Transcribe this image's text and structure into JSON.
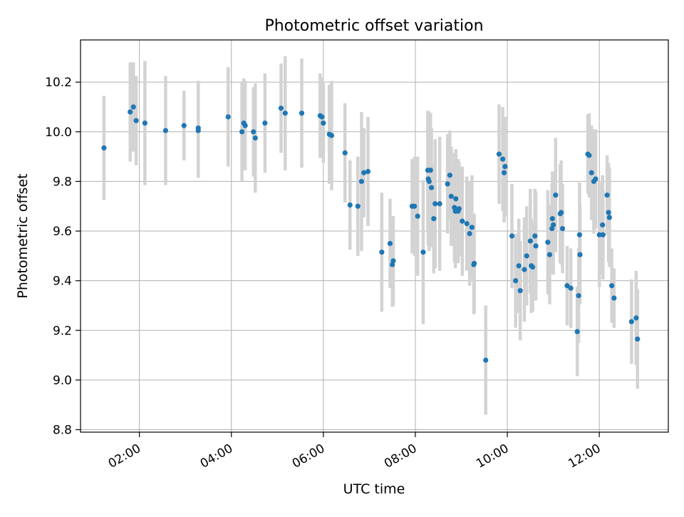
{
  "chart_data": {
    "type": "scatter",
    "title": "Photometric offset variation",
    "xlabel": "UTC time",
    "ylabel": "Photometric offset",
    "x_unit": "hours",
    "xlim": [
      0.72,
      13.5
    ],
    "ylim": [
      8.79,
      10.37
    ],
    "x_ticks": [
      {
        "value": 2,
        "label": "02:00"
      },
      {
        "value": 4,
        "label": "04:00"
      },
      {
        "value": 6,
        "label": "06:00"
      },
      {
        "value": 8,
        "label": "08:00"
      },
      {
        "value": 10,
        "label": "10:00"
      },
      {
        "value": 12,
        "label": "12:00"
      }
    ],
    "y_ticks": [
      {
        "value": 8.8,
        "label": "8.8"
      },
      {
        "value": 9.0,
        "label": "9.0"
      },
      {
        "value": 9.2,
        "label": "9.2"
      },
      {
        "value": 9.4,
        "label": "9.4"
      },
      {
        "value": 9.6,
        "label": "9.6"
      },
      {
        "value": 9.8,
        "label": "9.8"
      },
      {
        "value": 10.0,
        "label": "10.0"
      },
      {
        "value": 10.2,
        "label": "10.2"
      }
    ],
    "grid": true,
    "colors": {
      "point": "#1f77b4",
      "errorbar": "#d3d3d3",
      "grid": "#b0b0b0",
      "axes": "#000000"
    },
    "series": [
      {
        "points": [
          [
            1.23,
            9.935,
            0.21
          ],
          [
            1.8,
            10.08,
            0.2
          ],
          [
            1.87,
            10.1,
            0.18
          ],
          [
            1.93,
            10.045,
            0.18
          ],
          [
            2.12,
            10.035,
            0.25
          ],
          [
            2.57,
            10.005,
            0.22
          ],
          [
            2.97,
            10.025,
            0.14
          ],
          [
            3.28,
            10.005,
            0.19
          ],
          [
            3.28,
            10.015,
            0.19
          ],
          [
            3.93,
            10.06,
            0.2
          ],
          [
            4.23,
            10.0,
            0.2
          ],
          [
            4.27,
            10.035,
            0.18
          ],
          [
            4.3,
            10.025,
            0.18
          ],
          [
            4.48,
            10.0,
            0.18
          ],
          [
            4.52,
            9.975,
            0.22
          ],
          [
            4.73,
            10.035,
            0.2
          ],
          [
            5.08,
            10.095,
            0.18
          ],
          [
            5.17,
            10.075,
            0.23
          ],
          [
            5.53,
            10.075,
            0.22
          ],
          [
            5.93,
            10.065,
            0.17
          ],
          [
            5.97,
            10.06,
            0.16
          ],
          [
            6.0,
            10.035,
            0.16
          ],
          [
            6.13,
            9.99,
            0.2
          ],
          [
            6.18,
            9.985,
            0.22
          ],
          [
            6.47,
            9.915,
            0.2
          ],
          [
            6.58,
            9.705,
            0.18
          ],
          [
            6.75,
            9.7,
            0.2
          ],
          [
            6.83,
            9.8,
            0.28
          ],
          [
            6.88,
            9.835,
            0.18
          ],
          [
            6.97,
            9.84,
            0.22
          ],
          [
            7.27,
            9.515,
            0.24
          ],
          [
            7.45,
            9.55,
            0.18
          ],
          [
            7.5,
            9.465,
            0.17
          ],
          [
            7.52,
            9.48,
            0.18
          ],
          [
            7.93,
            9.7,
            0.19
          ],
          [
            7.98,
            9.7,
            0.2
          ],
          [
            8.05,
            9.66,
            0.24
          ],
          [
            8.17,
            9.515,
            0.29
          ],
          [
            8.27,
            9.845,
            0.24
          ],
          [
            8.28,
            9.81,
            0.27
          ],
          [
            8.3,
            9.8,
            0.28
          ],
          [
            8.33,
            9.845,
            0.23
          ],
          [
            8.35,
            9.775,
            0.24
          ],
          [
            8.4,
            9.65,
            0.22
          ],
          [
            8.43,
            9.71,
            0.26
          ],
          [
            8.53,
            9.71,
            0.27
          ],
          [
            8.7,
            9.79,
            0.2
          ],
          [
            8.75,
            9.825,
            0.18
          ],
          [
            8.78,
            9.74,
            0.2
          ],
          [
            8.85,
            9.695,
            0.22
          ],
          [
            8.87,
            9.68,
            0.23
          ],
          [
            8.88,
            9.73,
            0.2
          ],
          [
            8.93,
            9.68,
            0.21
          ],
          [
            8.95,
            9.69,
            0.19
          ],
          [
            9.02,
            9.64,
            0.22
          ],
          [
            9.12,
            9.63,
            0.19
          ],
          [
            9.18,
            9.59,
            0.21
          ],
          [
            9.23,
            9.615,
            0.21
          ],
          [
            9.27,
            9.465,
            0.2
          ],
          [
            9.28,
            9.47,
            0.2
          ],
          [
            9.53,
            9.08,
            0.22
          ],
          [
            9.82,
            9.91,
            0.2
          ],
          [
            9.9,
            9.89,
            0.21
          ],
          [
            9.93,
            9.835,
            0.2
          ],
          [
            9.95,
            9.86,
            0.2
          ],
          [
            10.1,
            9.58,
            0.21
          ],
          [
            10.18,
            9.4,
            0.19
          ],
          [
            10.25,
            9.46,
            0.19
          ],
          [
            10.28,
            9.36,
            0.2
          ],
          [
            10.37,
            9.445,
            0.21
          ],
          [
            10.42,
            9.5,
            0.2
          ],
          [
            10.5,
            9.56,
            0.21
          ],
          [
            10.52,
            9.46,
            0.19
          ],
          [
            10.55,
            9.455,
            0.18
          ],
          [
            10.6,
            9.58,
            0.19
          ],
          [
            10.62,
            9.54,
            0.22
          ],
          [
            10.88,
            9.555,
            0.21
          ],
          [
            10.92,
            9.505,
            0.2
          ],
          [
            10.97,
            9.61,
            0.18
          ],
          [
            10.98,
            9.65,
            0.19
          ],
          [
            11.0,
            9.625,
            0.2
          ],
          [
            11.05,
            9.745,
            0.23
          ],
          [
            11.15,
            9.67,
            0.2
          ],
          [
            11.17,
            9.675,
            0.21
          ],
          [
            11.2,
            9.61,
            0.18
          ],
          [
            11.3,
            9.38,
            0.16
          ],
          [
            11.38,
            9.37,
            0.16
          ],
          [
            11.52,
            9.195,
            0.18
          ],
          [
            11.55,
            9.34,
            0.19
          ],
          [
            11.57,
            9.585,
            0.21
          ],
          [
            11.58,
            9.505,
            0.2
          ],
          [
            11.75,
            9.91,
            0.16
          ],
          [
            11.78,
            9.905,
            0.17
          ],
          [
            11.83,
            9.835,
            0.19
          ],
          [
            11.88,
            9.8,
            0.21
          ],
          [
            11.92,
            9.81,
            0.2
          ],
          [
            12.0,
            9.585,
            0.21
          ],
          [
            12.07,
            9.625,
            0.2
          ],
          [
            12.08,
            9.585,
            0.18
          ],
          [
            12.17,
            9.745,
            0.16
          ],
          [
            12.2,
            9.675,
            0.2
          ],
          [
            12.22,
            9.655,
            0.2
          ],
          [
            12.27,
            9.38,
            0.15
          ],
          [
            12.32,
            9.33,
            0.12
          ],
          [
            12.7,
            9.235,
            0.17
          ],
          [
            12.8,
            9.25,
            0.19
          ],
          [
            12.83,
            9.165,
            0.2
          ]
        ]
      }
    ]
  }
}
